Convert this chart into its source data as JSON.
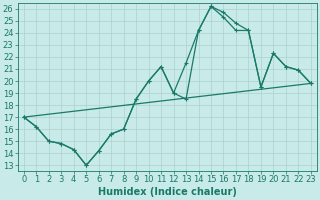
{
  "xlabel": "Humidex (Indice chaleur)",
  "background_color": "#c8eae8",
  "grid_color": "#aed0ce",
  "line_color": "#1a7a6a",
  "xlim": [
    -0.5,
    23.5
  ],
  "ylim": [
    12.5,
    26.5
  ],
  "xticks": [
    0,
    1,
    2,
    3,
    4,
    5,
    6,
    7,
    8,
    9,
    10,
    11,
    12,
    13,
    14,
    15,
    16,
    17,
    18,
    19,
    20,
    21,
    22,
    23
  ],
  "yticks": [
    13,
    14,
    15,
    16,
    17,
    18,
    19,
    20,
    21,
    22,
    23,
    24,
    25,
    26
  ],
  "line1_x": [
    0,
    1,
    2,
    3,
    4,
    5,
    6,
    7,
    8,
    9,
    10,
    11,
    12,
    13,
    14,
    15,
    16,
    17,
    18,
    19,
    20,
    21,
    22,
    23
  ],
  "line1_y": [
    17.0,
    16.2,
    15.0,
    14.8,
    14.3,
    13.0,
    14.2,
    15.6,
    16.0,
    18.5,
    20.0,
    21.2,
    19.0,
    18.5,
    24.2,
    26.2,
    25.7,
    24.8,
    24.2,
    19.5,
    22.3,
    21.2,
    20.9,
    19.8
  ],
  "line2_x": [
    0,
    1,
    2,
    3,
    4,
    5,
    6,
    7,
    8,
    9,
    10,
    11,
    12,
    13,
    14,
    15,
    16,
    17,
    18,
    19,
    20,
    21,
    22,
    23
  ],
  "line2_y": [
    17.0,
    16.2,
    15.0,
    14.8,
    14.3,
    13.0,
    14.2,
    15.6,
    16.0,
    18.5,
    20.0,
    21.2,
    19.0,
    21.5,
    24.2,
    26.2,
    25.3,
    24.2,
    24.2,
    19.5,
    22.3,
    21.2,
    20.9,
    19.8
  ],
  "line3_x": [
    0,
    23
  ],
  "line3_y": [
    17.0,
    19.8
  ],
  "marker_size": 2.5,
  "line_width": 0.9,
  "font_size": 6
}
